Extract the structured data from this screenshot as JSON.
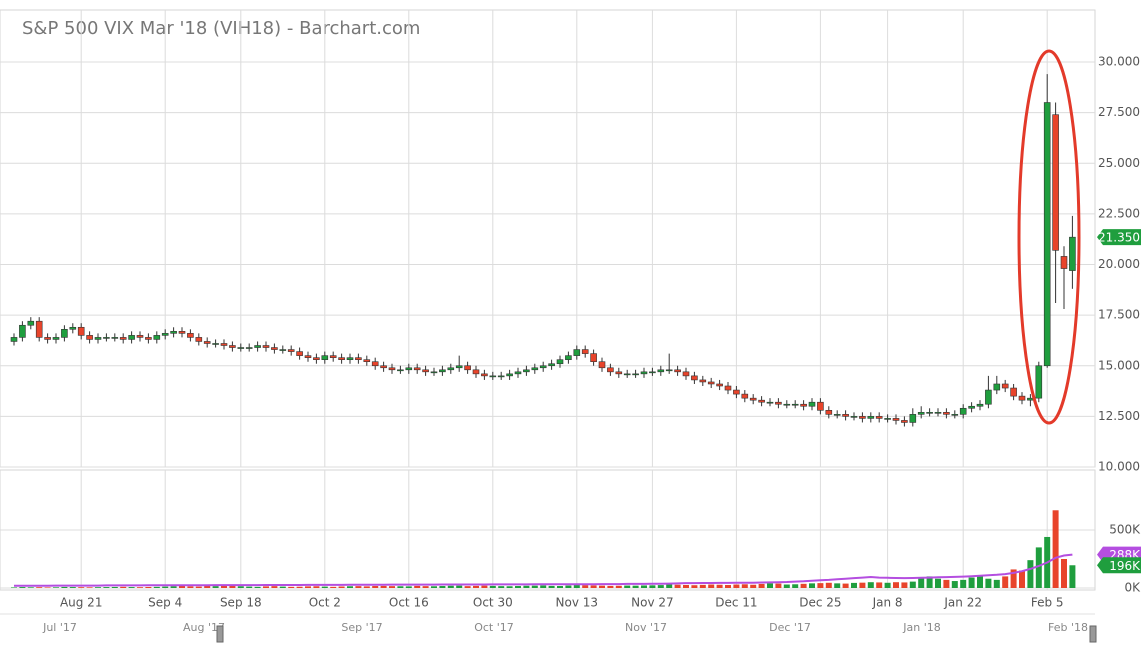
{
  "chart_data": {
    "type": "candlestick",
    "title": "S&P 500 VIX Mar '18 (VIH18) - Barchart.com",
    "categories": [
      null,
      null,
      null,
      null,
      null,
      null,
      null,
      null,
      "Aug 21",
      null,
      null,
      null,
      null,
      null,
      null,
      null,
      null,
      null,
      "Sep 4",
      null,
      null,
      null,
      null,
      null,
      null,
      null,
      null,
      "Sep 18",
      null,
      null,
      null,
      null,
      null,
      null,
      null,
      null,
      null,
      "Oct 2",
      null,
      null,
      null,
      null,
      null,
      null,
      null,
      null,
      null,
      "Oct 16",
      null,
      null,
      null,
      null,
      null,
      null,
      null,
      null,
      null,
      "Oct 30",
      null,
      null,
      null,
      null,
      null,
      null,
      null,
      null,
      null,
      "Nov 13",
      null,
      null,
      null,
      null,
      null,
      null,
      null,
      null,
      "Nov 27",
      null,
      null,
      null,
      null,
      null,
      null,
      null,
      null,
      null,
      "Dec 11",
      null,
      null,
      null,
      null,
      null,
      null,
      null,
      null,
      null,
      "Dec 25",
      null,
      null,
      null,
      null,
      null,
      null,
      null,
      "Jan 8",
      null,
      null,
      null,
      null,
      null,
      null,
      null,
      null,
      "Jan 22",
      null,
      null,
      null,
      null,
      null,
      null,
      null,
      null,
      null,
      "Feb 5",
      null,
      null,
      null
    ],
    "open": [
      16.2,
      16.4,
      17.0,
      17.2,
      16.4,
      16.3,
      16.4,
      16.8,
      16.9,
      16.5,
      16.3,
      16.4,
      16.4,
      16.4,
      16.3,
      16.5,
      16.4,
      16.3,
      16.5,
      16.6,
      16.7,
      16.6,
      16.4,
      16.2,
      16.1,
      16.1,
      16.0,
      15.9,
      15.9,
      15.9,
      16.0,
      15.9,
      15.8,
      15.8,
      15.7,
      15.5,
      15.4,
      15.3,
      15.5,
      15.4,
      15.3,
      15.4,
      15.3,
      15.2,
      15.0,
      14.9,
      14.8,
      14.8,
      14.9,
      14.8,
      14.7,
      14.7,
      14.8,
      14.9,
      15.0,
      14.8,
      14.6,
      14.5,
      14.5,
      14.5,
      14.6,
      14.7,
      14.8,
      14.9,
      15.0,
      15.1,
      15.3,
      15.5,
      15.8,
      15.6,
      15.2,
      14.9,
      14.7,
      14.6,
      14.6,
      14.6,
      14.7,
      14.7,
      14.8,
      14.8,
      14.7,
      14.5,
      14.3,
      14.2,
      14.1,
      14.0,
      13.8,
      13.6,
      13.4,
      13.3,
      13.2,
      13.2,
      13.1,
      13.1,
      13.1,
      13.0,
      13.2,
      12.8,
      12.6,
      12.6,
      12.5,
      12.5,
      12.4,
      12.5,
      12.4,
      12.4,
      12.3,
      12.2,
      12.6,
      12.7,
      12.7,
      12.7,
      12.6,
      12.6,
      12.9,
      13.0,
      13.1,
      13.8,
      14.1,
      13.9,
      13.5,
      13.3,
      13.4,
      15.0,
      27.4,
      20.4,
      19.7
    ],
    "high": [
      16.6,
      17.2,
      17.4,
      17.4,
      16.6,
      16.6,
      17.0,
      17.1,
      17.1,
      16.7,
      16.6,
      16.6,
      16.6,
      16.6,
      16.7,
      16.7,
      16.6,
      16.7,
      16.8,
      16.9,
      16.9,
      16.8,
      16.6,
      16.4,
      16.3,
      16.3,
      16.2,
      16.1,
      16.1,
      16.2,
      16.2,
      16.1,
      16.0,
      16.0,
      15.9,
      15.7,
      15.6,
      15.7,
      15.7,
      15.6,
      15.6,
      15.6,
      15.5,
      15.4,
      15.2,
      15.1,
      15.0,
      15.1,
      15.1,
      15.0,
      14.9,
      15.0,
      15.1,
      15.5,
      15.2,
      15.0,
      14.8,
      14.7,
      14.7,
      14.8,
      14.9,
      15.0,
      15.1,
      15.2,
      15.3,
      15.5,
      15.7,
      16.0,
      16.0,
      15.8,
      15.4,
      15.1,
      14.9,
      14.8,
      14.8,
      14.9,
      14.9,
      15.0,
      15.6,
      15.0,
      14.9,
      14.7,
      14.5,
      14.4,
      14.3,
      14.2,
      14.0,
      13.8,
      13.6,
      13.5,
      13.4,
      13.4,
      13.3,
      13.3,
      13.3,
      13.4,
      13.4,
      13.0,
      12.8,
      12.8,
      12.7,
      12.7,
      12.7,
      12.7,
      12.6,
      12.6,
      12.5,
      12.9,
      13.0,
      12.9,
      12.9,
      12.9,
      12.8,
      13.1,
      13.2,
      13.3,
      14.5,
      14.5,
      14.3,
      14.1,
      13.7,
      13.6,
      15.2,
      29.4,
      28.0,
      20.9,
      22.4
    ],
    "low": [
      16.0,
      16.2,
      16.8,
      16.2,
      16.1,
      16.1,
      16.2,
      16.6,
      16.3,
      16.1,
      16.1,
      16.2,
      16.2,
      16.1,
      16.1,
      16.2,
      16.1,
      16.1,
      16.3,
      16.4,
      16.4,
      16.2,
      16.0,
      15.9,
      15.9,
      15.8,
      15.7,
      15.7,
      15.7,
      15.7,
      15.7,
      15.6,
      15.6,
      15.5,
      15.3,
      15.2,
      15.1,
      15.1,
      15.2,
      15.1,
      15.1,
      15.1,
      15.0,
      14.8,
      14.7,
      14.6,
      14.6,
      14.6,
      14.6,
      14.5,
      14.5,
      14.5,
      14.6,
      14.7,
      14.6,
      14.4,
      14.3,
      14.3,
      14.3,
      14.3,
      14.4,
      14.5,
      14.6,
      14.7,
      14.8,
      14.9,
      15.1,
      15.3,
      15.4,
      15.0,
      14.7,
      14.5,
      14.4,
      14.4,
      14.4,
      14.4,
      14.5,
      14.5,
      14.6,
      14.5,
      14.3,
      14.1,
      14.0,
      13.9,
      13.8,
      13.6,
      13.4,
      13.2,
      13.1,
      13.0,
      13.0,
      12.9,
      12.9,
      12.9,
      12.8,
      12.8,
      12.6,
      12.4,
      12.4,
      12.3,
      12.3,
      12.2,
      12.2,
      12.2,
      12.2,
      12.1,
      12.0,
      12.0,
      12.4,
      12.5,
      12.5,
      12.4,
      12.4,
      12.4,
      12.7,
      12.8,
      12.9,
      13.6,
      13.7,
      13.3,
      13.1,
      13.0,
      13.2,
      14.9,
      18.1,
      17.8,
      18.8
    ],
    "close": [
      16.4,
      17.0,
      17.2,
      16.4,
      16.3,
      16.4,
      16.8,
      16.9,
      16.5,
      16.3,
      16.4,
      16.4,
      16.4,
      16.3,
      16.5,
      16.4,
      16.3,
      16.5,
      16.6,
      16.7,
      16.6,
      16.4,
      16.2,
      16.1,
      16.1,
      16.0,
      15.9,
      15.9,
      15.9,
      16.0,
      15.9,
      15.8,
      15.8,
      15.7,
      15.5,
      15.4,
      15.3,
      15.5,
      15.4,
      15.3,
      15.4,
      15.3,
      15.2,
      15.0,
      14.9,
      14.8,
      14.8,
      14.9,
      14.8,
      14.7,
      14.7,
      14.8,
      14.9,
      15.0,
      14.8,
      14.6,
      14.5,
      14.5,
      14.5,
      14.6,
      14.7,
      14.8,
      14.9,
      15.0,
      15.1,
      15.3,
      15.5,
      15.8,
      15.6,
      15.2,
      14.9,
      14.7,
      14.6,
      14.6,
      14.6,
      14.7,
      14.7,
      14.8,
      14.8,
      14.7,
      14.5,
      14.3,
      14.2,
      14.1,
      14.0,
      13.8,
      13.6,
      13.4,
      13.3,
      13.2,
      13.2,
      13.1,
      13.1,
      13.1,
      13.0,
      13.2,
      12.8,
      12.6,
      12.6,
      12.5,
      12.5,
      12.4,
      12.5,
      12.4,
      12.4,
      12.3,
      12.2,
      12.6,
      12.7,
      12.7,
      12.7,
      12.6,
      12.6,
      12.9,
      13.0,
      13.1,
      13.8,
      14.1,
      13.9,
      13.5,
      13.3,
      13.4,
      15.0,
      28.0,
      20.7,
      19.8,
      21.35
    ],
    "up_color": "#1f9e3e",
    "down_color": "#e8442b",
    "ylim": [
      10,
      32.5
    ],
    "yticks": [
      {
        "value": 10,
        "label": "10.000"
      },
      {
        "value": 12.5,
        "label": "12.500"
      },
      {
        "value": 15,
        "label": "15.000"
      },
      {
        "value": 17.5,
        "label": "17.500"
      },
      {
        "value": 20,
        "label": "20.000"
      },
      {
        "value": 22.5,
        "label": "22.500"
      },
      {
        "value": 25,
        "label": "25.000"
      },
      {
        "value": 27.5,
        "label": "27.500"
      },
      {
        "value": 30,
        "label": "30.000"
      }
    ],
    "grid": true,
    "price_tag": {
      "value": 21.35,
      "label": "21.350"
    },
    "volume": {
      "values": [
        5000,
        8000,
        6000,
        7000,
        5000,
        6000,
        9000,
        8000,
        7000,
        6000,
        7000,
        8000,
        9000,
        10000,
        8000,
        7000,
        9000,
        10000,
        12000,
        15000,
        20000,
        14000,
        12000,
        18000,
        16000,
        20000,
        22000,
        15000,
        12000,
        10000,
        14000,
        16000,
        12000,
        10000,
        11000,
        14000,
        15000,
        12000,
        10000,
        13000,
        15000,
        16000,
        14000,
        17000,
        18000,
        16000,
        15000,
        14000,
        18000,
        16000,
        15000,
        17000,
        19000,
        20000,
        16000,
        18000,
        20000,
        18000,
        16000,
        15000,
        17000,
        19000,
        20000,
        22000,
        18000,
        17000,
        21000,
        25000,
        24000,
        22000,
        20000,
        18000,
        19000,
        21000,
        20000,
        22000,
        23000,
        25000,
        30000,
        28000,
        26000,
        24000,
        27000,
        30000,
        28000,
        26000,
        30000,
        32000,
        28000,
        35000,
        40000,
        38000,
        30000,
        32000,
        36000,
        40000,
        42000,
        45000,
        40000,
        38000,
        44000,
        46000,
        50000,
        48000,
        45000,
        50000,
        48000,
        55000,
        90000,
        100000,
        80000,
        70000,
        60000,
        70000,
        90000,
        110000,
        80000,
        70000,
        100000,
        160000,
        150000,
        240000,
        350000,
        440000,
        670000,
        250000,
        196000
      ],
      "avg": [
        20000,
        20000,
        20000,
        20000,
        20000,
        21000,
        21000,
        21000,
        21000,
        21000,
        21000,
        22000,
        22000,
        22000,
        22000,
        22000,
        23000,
        23000,
        23000,
        23000,
        24000,
        24000,
        24000,
        24000,
        25000,
        25000,
        25000,
        25000,
        25000,
        25000,
        26000,
        26000,
        26000,
        26000,
        26000,
        27000,
        27000,
        27000,
        27000,
        27000,
        28000,
        28000,
        28000,
        28000,
        28000,
        29000,
        29000,
        29000,
        29000,
        29000,
        29000,
        30000,
        30000,
        30000,
        30000,
        30000,
        30000,
        31000,
        31000,
        31000,
        31000,
        31000,
        32000,
        32000,
        32000,
        32000,
        33000,
        33000,
        33000,
        33000,
        34000,
        34000,
        34000,
        35000,
        35000,
        35000,
        36000,
        37000,
        38000,
        40000,
        42000,
        42000,
        43000,
        43000,
        44000,
        44000,
        45000,
        45000,
        46000,
        47000,
        48000,
        50000,
        52000,
        55000,
        58000,
        62000,
        66000,
        70000,
        75000,
        80000,
        85000,
        90000,
        95000,
        90000,
        88000,
        86000,
        85000,
        86000,
        88000,
        90000,
        92000,
        94000,
        96000,
        98000,
        102000,
        106000,
        110000,
        114000,
        120000,
        130000,
        145000,
        165000,
        190000,
        220000,
        260000,
        280000,
        288000
      ],
      "avg_color": "#b44ee0",
      "ylim": [
        0,
        1000000
      ],
      "yticks": [
        {
          "value": 0,
          "label": "0K"
        },
        {
          "value": 500000,
          "label": "500K"
        }
      ],
      "tags": [
        {
          "value": 288000,
          "label": "288K",
          "color": "#b44ee0"
        },
        {
          "value": 196000,
          "label": "196K",
          "color": "#1f9e3e"
        }
      ]
    }
  },
  "navigator": {
    "labels": [
      "Jul '17",
      "Aug '17",
      "Sep '17",
      "Oct '17",
      "Nov '17",
      "Dec '17",
      "Jan '18",
      "Feb '18"
    ]
  }
}
